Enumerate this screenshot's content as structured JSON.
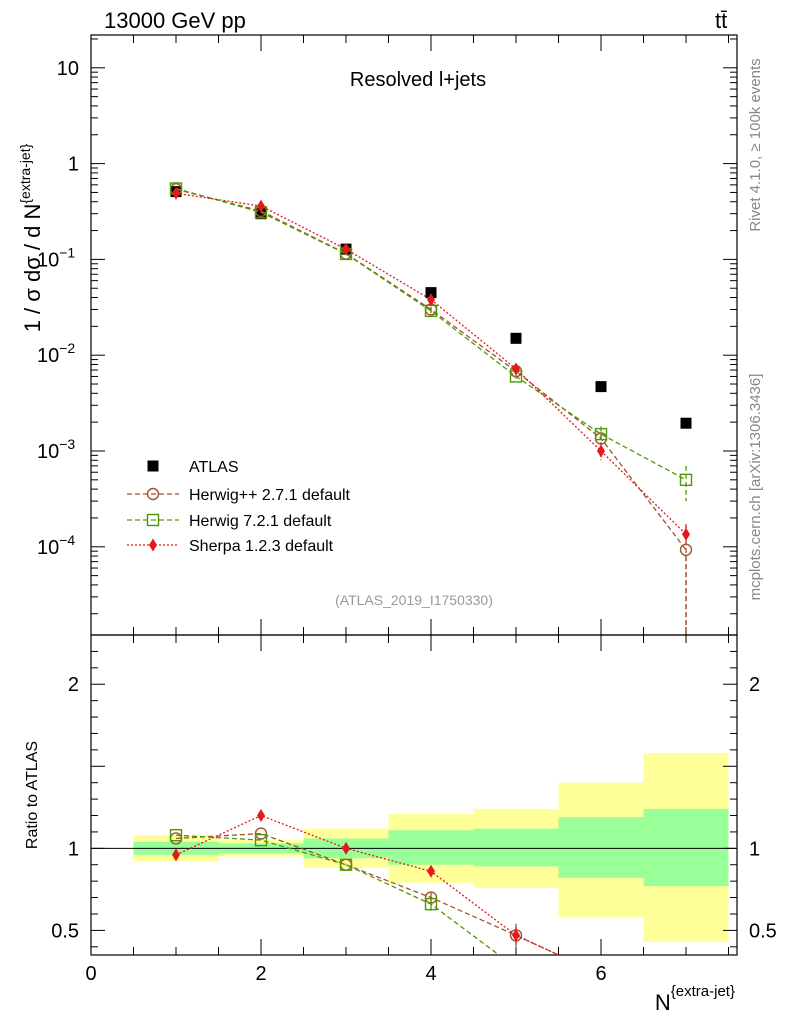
{
  "header": {
    "energy_label": "13000 GeV pp",
    "process_label": "tt̄",
    "plot_title": "Resolved l+jets",
    "analysis_id": "(ATLAS_2019_I1750330)",
    "side_rivet": "Rivet 4.1.0, ≥ 100k events",
    "side_mcplots": "mcplots.cern.ch [arXiv:1306.3436]"
  },
  "chart_data": [
    {
      "type": "scatter",
      "panel": "main",
      "ylabel": "1 / σ dσ / d N",
      "ylabel_sup": "{extra-jet}",
      "yscale": "log",
      "ylim": [
        1.2e-05,
        22
      ],
      "y_ticks": [
        {
          "value": 10,
          "mantissa": "10",
          "exp": ""
        },
        {
          "value": 1,
          "mantissa": "1",
          "exp": ""
        },
        {
          "value": 0.1,
          "mantissa": "10",
          "exp": "−1"
        },
        {
          "value": 0.01,
          "mantissa": "10",
          "exp": "−2"
        },
        {
          "value": 0.001,
          "mantissa": "10",
          "exp": "−3"
        },
        {
          "value": 0.0001,
          "mantissa": "10",
          "exp": "−4"
        }
      ],
      "series": [
        {
          "name": "ATLAS",
          "style": "data",
          "color": "#000000",
          "x": [
            1,
            2,
            3,
            4,
            5,
            6,
            7
          ],
          "y": [
            0.51,
            0.3,
            0.128,
            0.045,
            0.015,
            0.0047,
            0.00195
          ]
        },
        {
          "name": "Herwig++ 2.7.1 default",
          "style": "circle-dashed",
          "color": "#a0522d",
          "x": [
            1,
            2,
            3,
            4,
            5,
            6,
            7
          ],
          "y": [
            0.54,
            0.32,
            0.115,
            0.03,
            0.0068,
            0.00135,
            9.3e-05
          ],
          "err": [
            0,
            0,
            0,
            0.002,
            0.0005,
            0.00015,
            8e-05
          ]
        },
        {
          "name": "Herwig 7.2.1 default",
          "style": "square-dashed",
          "color": "#4e9a06",
          "x": [
            1,
            2,
            3,
            4,
            5,
            6,
            7
          ],
          "y": [
            0.55,
            0.31,
            0.114,
            0.029,
            0.006,
            0.0015,
            0.0005
          ],
          "err": [
            0,
            0,
            0,
            0.002,
            0.0004,
            0.0003,
            0.0002
          ]
        },
        {
          "name": "Sherpa 1.2.3 default",
          "style": "diamond-dotted",
          "color": "#e31a1c",
          "x": [
            1,
            2,
            3,
            4,
            5,
            6,
            7
          ],
          "y": [
            0.49,
            0.36,
            0.128,
            0.038,
            0.0072,
            0.001,
            0.000135
          ],
          "err": [
            0,
            0,
            0,
            0.002,
            0.0006,
            0.0002,
            3e-05
          ]
        }
      ]
    },
    {
      "type": "line",
      "panel": "ratio",
      "ylabel": "Ratio to ATLAS",
      "ylim": [
        0.35,
        2.3
      ],
      "y_ticks": [
        0.5,
        1,
        2
      ],
      "xlim": [
        0,
        7.6
      ],
      "x_ticks": [
        0,
        2,
        4,
        6
      ],
      "xlabel": "N",
      "xlabel_sup": "{extra-jet}",
      "bands": [
        {
          "x0": 0.5,
          "x1": 1.5,
          "yellow": [
            0.92,
            1.08
          ],
          "green": [
            0.96,
            1.04
          ]
        },
        {
          "x0": 1.5,
          "x1": 2.5,
          "yellow": [
            0.95,
            1.05
          ],
          "green": [
            0.97,
            1.03
          ]
        },
        {
          "x0": 2.5,
          "x1": 3.5,
          "yellow": [
            0.88,
            1.12
          ],
          "green": [
            0.94,
            1.06
          ]
        },
        {
          "x0": 3.5,
          "x1": 4.5,
          "yellow": [
            0.79,
            1.21
          ],
          "green": [
            0.9,
            1.11
          ]
        },
        {
          "x0": 4.5,
          "x1": 5.5,
          "yellow": [
            0.76,
            1.24
          ],
          "green": [
            0.89,
            1.12
          ]
        },
        {
          "x0": 5.5,
          "x1": 6.5,
          "yellow": [
            0.58,
            1.4
          ],
          "green": [
            0.82,
            1.19
          ]
        },
        {
          "x0": 6.5,
          "x1": 7.5,
          "yellow": [
            0.43,
            1.58
          ],
          "green": [
            0.77,
            1.24
          ]
        }
      ],
      "series": [
        {
          "name": "Herwig++ 2.7.1 default",
          "style": "circle-dashed",
          "color": "#a0522d",
          "x": [
            1,
            2,
            3,
            4,
            5,
            5.5
          ],
          "y": [
            1.06,
            1.09,
            0.9,
            0.7,
            0.47,
            0.35
          ],
          "err": [
            0,
            0,
            0,
            0.03,
            0.07,
            0
          ]
        },
        {
          "name": "Herwig 7.2.1 default",
          "style": "square-dashed",
          "color": "#4e9a06",
          "x": [
            1,
            2,
            3,
            4,
            4.8
          ],
          "y": [
            1.08,
            1.05,
            0.9,
            0.66,
            0.35
          ],
          "err": [
            0,
            0,
            0,
            0.04,
            0
          ]
        },
        {
          "name": "Sherpa 1.2.3 default",
          "style": "diamond-dotted",
          "color": "#e31a1c",
          "x": [
            1,
            2,
            3,
            4,
            5,
            5.5
          ],
          "y": [
            0.96,
            1.2,
            1.0,
            0.86,
            0.47,
            0.35
          ],
          "err": [
            0,
            0,
            0,
            0,
            0.05,
            0
          ]
        }
      ]
    }
  ]
}
